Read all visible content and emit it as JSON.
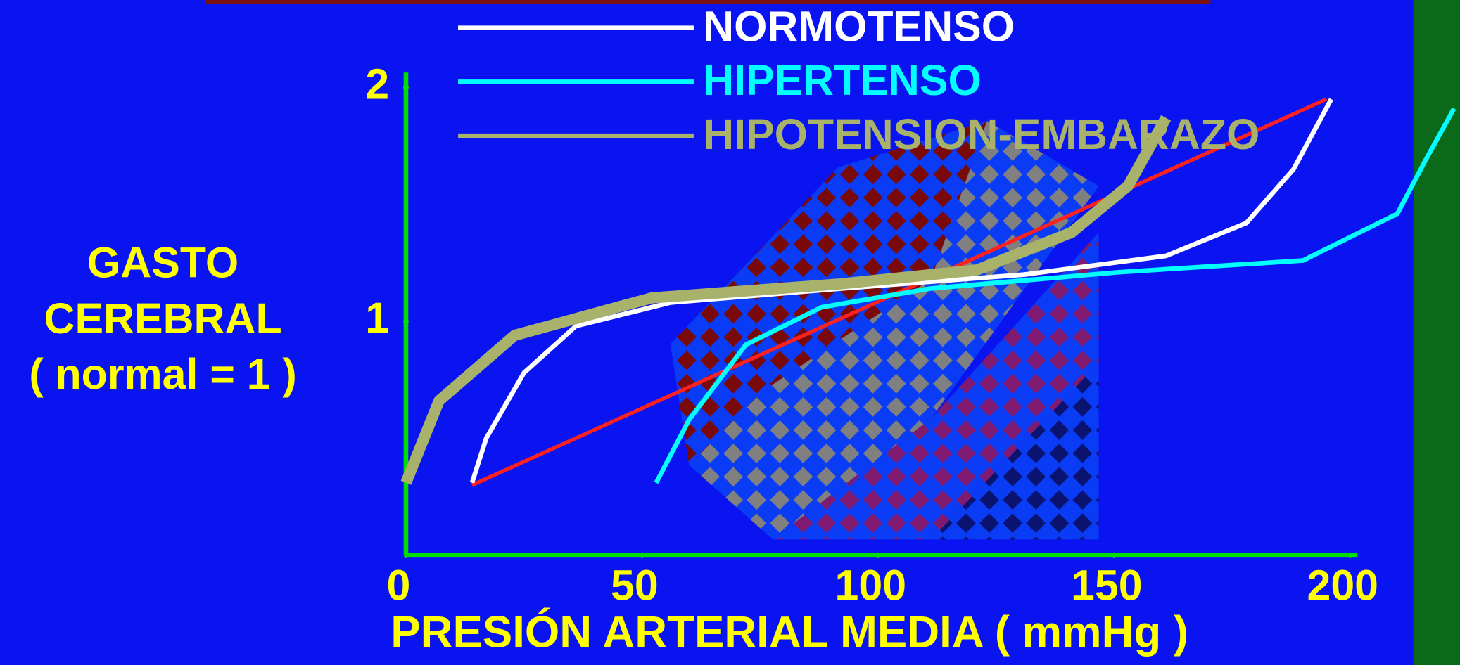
{
  "chart_data": {
    "type": "line",
    "y_label": [
      "GASTO",
      "CEREBRAL",
      "( normal = 1 )"
    ],
    "x_label": "PRESIÓN ARTERIAL MEDIA ( mmHg )",
    "xlim": [
      0,
      200
    ],
    "ylim": [
      0,
      2
    ],
    "xticks": [
      0,
      50,
      100,
      150,
      200
    ],
    "yticks": [
      1,
      2
    ],
    "series": [
      {
        "name": "NORMOTENSO",
        "color": "#ffffff",
        "x": [
          14,
          17,
          25,
          36,
          56,
          92,
          131,
          161,
          178,
          188,
          196
        ],
        "values": [
          0.31,
          0.5,
          0.78,
          0.98,
          1.08,
          1.14,
          1.2,
          1.28,
          1.42,
          1.65,
          1.95
        ]
      },
      {
        "name": "HIPERTENSO",
        "color": "#00ffff",
        "x": [
          53,
          60,
          72,
          88,
          111,
          151,
          190,
          210,
          216,
          222
        ],
        "values": [
          0.31,
          0.58,
          0.9,
          1.06,
          1.14,
          1.21,
          1.26,
          1.46,
          1.69,
          1.91
        ]
      },
      {
        "name": "HIPOTENSION-EMBARAZO",
        "color": "#a9b26a",
        "x": [
          0,
          7,
          23,
          52,
          92,
          121,
          141,
          153,
          161
        ],
        "values": [
          0.31,
          0.66,
          0.94,
          1.1,
          1.16,
          1.22,
          1.38,
          1.58,
          1.87
        ]
      },
      {
        "color": "#ff2020",
        "x": [
          14,
          195
        ],
        "values": [
          0.3,
          1.95
        ]
      }
    ]
  }
}
